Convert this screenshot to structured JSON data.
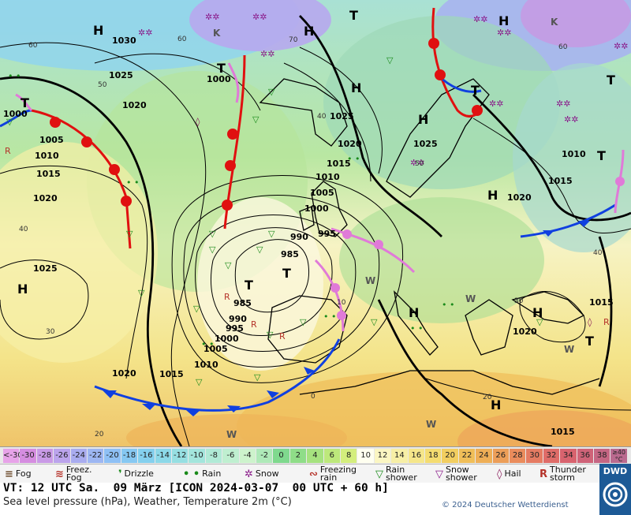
{
  "map": {
    "pressure_labels": [
      {
        "text": "1030"
      },
      {
        "text": "1025"
      },
      {
        "text": "1020"
      },
      {
        "text": "1000"
      },
      {
        "text": "1005"
      },
      {
        "text": "1010"
      },
      {
        "text": "1015"
      },
      {
        "text": "1020"
      },
      {
        "text": "1025"
      },
      {
        "text": "1000"
      },
      {
        "text": "1025"
      },
      {
        "text": "1020"
      },
      {
        "text": "1025"
      },
      {
        "text": "1015"
      },
      {
        "text": "1010"
      },
      {
        "text": "1005"
      },
      {
        "text": "1000"
      },
      {
        "text": "990"
      },
      {
        "text": "995"
      },
      {
        "text": "985"
      },
      {
        "text": "985"
      },
      {
        "text": "990"
      },
      {
        "text": "995"
      },
      {
        "text": "1000"
      },
      {
        "text": "1005"
      },
      {
        "text": "1010"
      },
      {
        "text": "1015"
      },
      {
        "text": "1020"
      },
      {
        "text": "1010"
      },
      {
        "text": "1015"
      },
      {
        "text": "1020"
      },
      {
        "text": "1015"
      },
      {
        "text": "1020"
      },
      {
        "text": "1015"
      }
    ],
    "temp_labels": [
      "60",
      "50",
      "40",
      "30",
      "20",
      "60",
      "60",
      "70",
      "50",
      "40",
      "20",
      "0",
      "10",
      "30",
      "40"
    ],
    "high_label": "H",
    "low_label": "T",
    "warm_label": "W",
    "cold_label": "K"
  },
  "scale": {
    "cells": [
      {
        "label": "<-30",
        "color": "#e7a3e8"
      },
      {
        "label": "-30",
        "color": "#d58de0"
      },
      {
        "label": "-28",
        "color": "#c99ae6"
      },
      {
        "label": "-26",
        "color": "#bba4ec"
      },
      {
        "label": "-24",
        "color": "#a9acef"
      },
      {
        "label": "-22",
        "color": "#9db6f2"
      },
      {
        "label": "-20",
        "color": "#8ec0f5"
      },
      {
        "label": "-18",
        "color": "#86c8f2"
      },
      {
        "label": "-16",
        "color": "#84d0ee"
      },
      {
        "label": "-14",
        "color": "#8cd8e8"
      },
      {
        "label": "-12",
        "color": "#96dfe2"
      },
      {
        "label": "-10",
        "color": "#a3e5dc"
      },
      {
        "label": "-8",
        "color": "#b0ead6"
      },
      {
        "label": "-6",
        "color": "#bfefd0"
      },
      {
        "label": "-4",
        "color": "#cdf3cc"
      },
      {
        "label": "-2",
        "color": "#aee9b8"
      },
      {
        "label": "0",
        "color": "#7fd98e"
      },
      {
        "label": "2",
        "color": "#8fdd88"
      },
      {
        "label": "4",
        "color": "#a6e27f"
      },
      {
        "label": "6",
        "color": "#bde87b"
      },
      {
        "label": "8",
        "color": "#d4ee7d"
      },
      {
        "label": "10",
        "color": "#fffff0"
      },
      {
        "label": "12",
        "color": "#fbf6c2"
      },
      {
        "label": "14",
        "color": "#f7efa6"
      },
      {
        "label": "16",
        "color": "#f5e68a"
      },
      {
        "label": "18",
        "color": "#f4dc70"
      },
      {
        "label": "20",
        "color": "#f2ce60"
      },
      {
        "label": "22",
        "color": "#f0be58"
      },
      {
        "label": "24",
        "color": "#eeae56"
      },
      {
        "label": "26",
        "color": "#ec9e58"
      },
      {
        "label": "28",
        "color": "#ea8c5c"
      },
      {
        "label": "30",
        "color": "#e57b62"
      },
      {
        "label": "32",
        "color": "#df6c68"
      },
      {
        "label": "34",
        "color": "#d8636e"
      },
      {
        "label": "36",
        "color": "#cf6378"
      },
      {
        "label": "38",
        "color": "#c56683"
      },
      {
        "label": "≥40 °C",
        "color": "#ba6a8f"
      }
    ]
  },
  "symbols": [
    {
      "icon": "fog-icon",
      "label": "Fog",
      "color": "#6b4a2a"
    },
    {
      "icon": "freezing-fog-icon",
      "label": "Freez. Fog",
      "color": "#b5332a"
    },
    {
      "icon": "drizzle-icon",
      "label": "Drizzle",
      "color": "#1a8a1a"
    },
    {
      "icon": "rain-icon",
      "label": "Rain",
      "color": "#1a8a1a"
    },
    {
      "icon": "snow-icon",
      "label": "Snow",
      "color": "#8a1a8a"
    },
    {
      "icon": "freezing-rain-icon",
      "label": "Freezing rain",
      "color": "#b5332a"
    },
    {
      "icon": "rain-shower-icon",
      "label": "Rain shower",
      "color": "#1a8a1a"
    },
    {
      "icon": "snow-shower-icon",
      "label": "Snow shower",
      "color": "#8a1a8a"
    },
    {
      "icon": "hail-icon",
      "label": "Hail",
      "color": "#8a1a5a"
    },
    {
      "icon": "thunderstorm-icon",
      "label": "Thunder storm",
      "color": "#b5332a"
    }
  ],
  "info": {
    "vt_line": "VT: 12 UTC Sa.  09 März [ICON 2024-03-07  00 UTC + 60 h]",
    "subtitle": "Sea level pressure (hPa), Weather, Temperature 2m (°C)",
    "copyright": "© 2024 Deutscher Wetterdienst",
    "logo_text": "DWD"
  }
}
